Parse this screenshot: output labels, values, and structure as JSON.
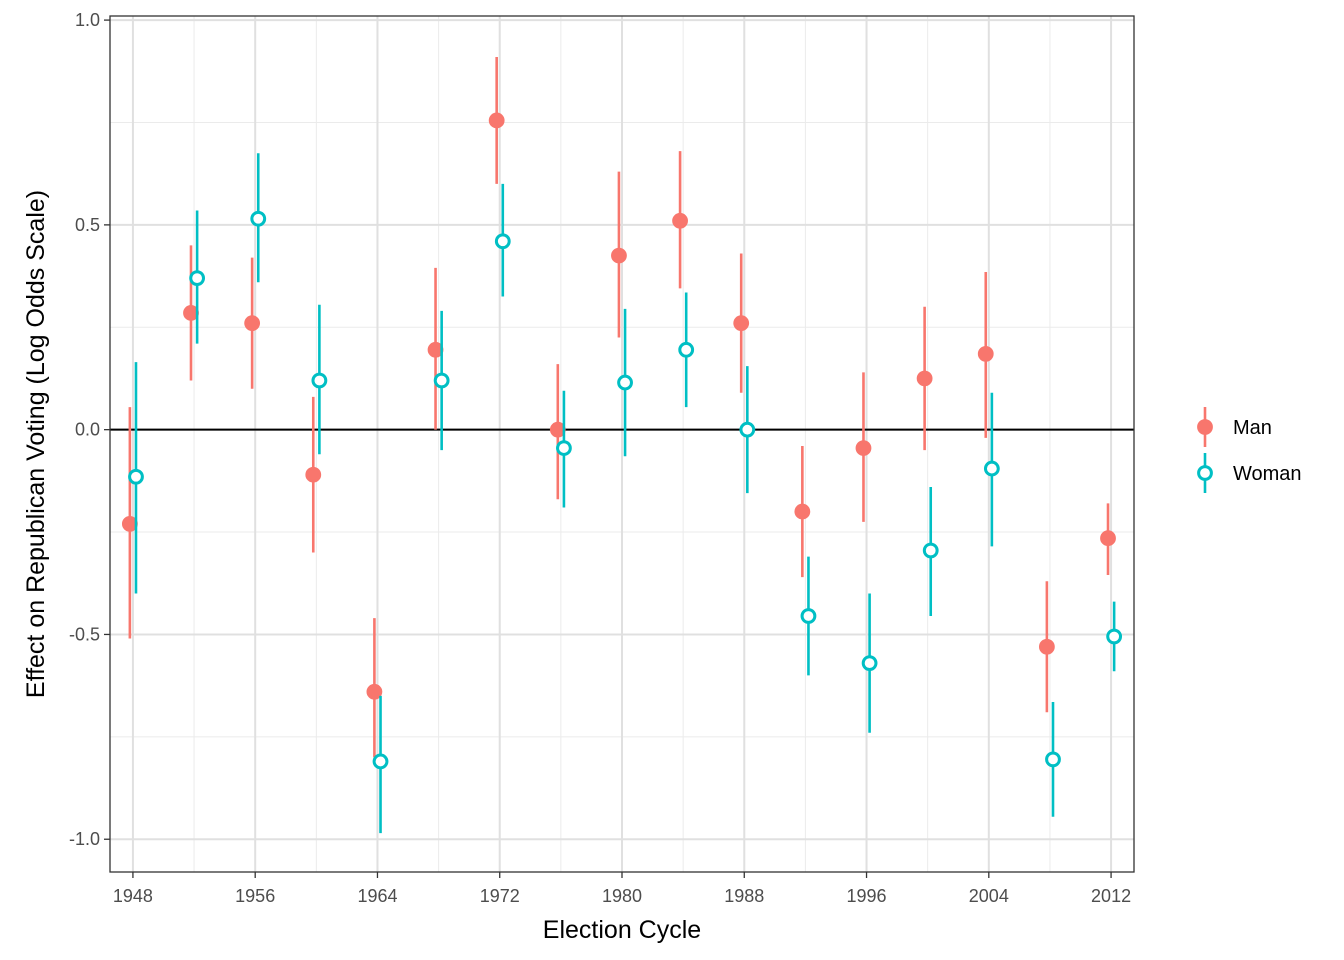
{
  "chart_data": {
    "type": "scatter",
    "subtype": "point-range (dodged)",
    "title": "",
    "xlabel": "Election Cycle",
    "ylabel": "Effect on Republican Voting (Log Odds Scale)",
    "xlim": [
      1946.5,
      2013.5
    ],
    "ylim": [
      -1.08,
      1.01
    ],
    "x_ticks": [
      1948,
      1956,
      1964,
      1972,
      1980,
      1988,
      1996,
      2004,
      2012
    ],
    "x_tick_labels": [
      "1948",
      "1956",
      "1964",
      "1972",
      "1980",
      "1988",
      "1996",
      "2004",
      "2012"
    ],
    "y_ticks": [
      -1.0,
      -0.5,
      0.0,
      0.5,
      1.0
    ],
    "y_tick_labels": [
      "-1.0",
      "-0.5",
      "0.0",
      "0.5",
      "1.0"
    ],
    "reference_line_y": 0,
    "grid": true,
    "theme": "bw",
    "legend_position": "right",
    "x": [
      1948,
      1952,
      1956,
      1960,
      1964,
      1968,
      1972,
      1976,
      1980,
      1984,
      1988,
      1992,
      1996,
      2000,
      2004,
      2008,
      2012
    ],
    "series": [
      {
        "name": "Man",
        "color": "#F8766D",
        "marker": "filled-circle",
        "dodge": -0.2,
        "values": [
          -0.23,
          0.285,
          0.26,
          -0.11,
          -0.64,
          0.195,
          0.755,
          0.0,
          0.425,
          0.51,
          0.26,
          -0.2,
          -0.045,
          0.125,
          0.185,
          -0.53,
          -0.265
        ],
        "lower": [
          -0.51,
          0.12,
          0.1,
          -0.3,
          -0.8,
          0.0,
          0.6,
          -0.17,
          0.225,
          0.345,
          0.09,
          -0.36,
          -0.225,
          -0.05,
          -0.02,
          -0.69,
          -0.355
        ],
        "upper": [
          0.055,
          0.45,
          0.42,
          0.08,
          -0.46,
          0.395,
          0.91,
          0.16,
          0.63,
          0.68,
          0.43,
          -0.04,
          0.14,
          0.3,
          0.385,
          -0.37,
          -0.18
        ]
      },
      {
        "name": "Woman",
        "color": "#00BFC4",
        "marker": "open-circle",
        "dodge": 0.2,
        "values": [
          -0.115,
          0.37,
          0.515,
          0.12,
          -0.81,
          0.12,
          0.46,
          -0.045,
          0.115,
          0.195,
          0.0,
          -0.455,
          -0.57,
          -0.295,
          -0.095,
          -0.805,
          -0.505
        ],
        "lower": [
          -0.4,
          0.21,
          0.36,
          -0.06,
          -0.985,
          -0.05,
          0.325,
          -0.19,
          -0.065,
          0.055,
          -0.155,
          -0.6,
          -0.74,
          -0.455,
          -0.285,
          -0.945,
          -0.59
        ],
        "upper": [
          0.165,
          0.535,
          0.675,
          0.305,
          -0.65,
          0.29,
          0.6,
          0.095,
          0.295,
          0.335,
          0.155,
          -0.31,
          -0.4,
          -0.14,
          0.09,
          -0.665,
          -0.42
        ]
      }
    ],
    "legend": {
      "entries": [
        "Man",
        "Woman"
      ]
    }
  }
}
